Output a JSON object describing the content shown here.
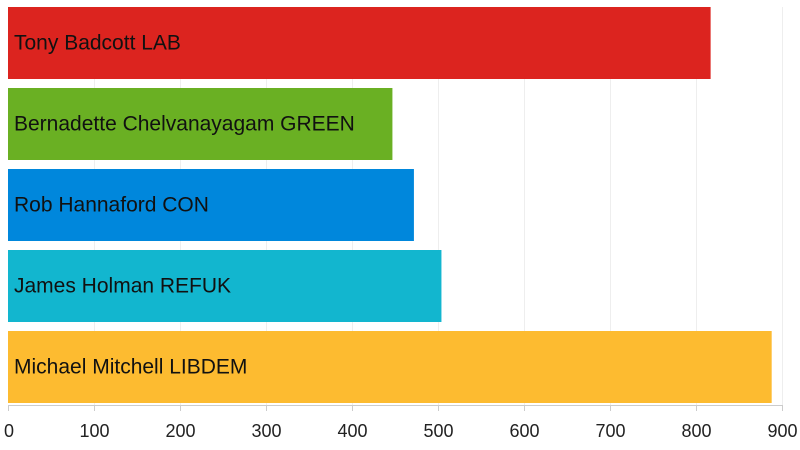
{
  "chart_data": {
    "type": "bar",
    "orientation": "horizontal",
    "title": "",
    "xlabel": "",
    "ylabel": "",
    "xlim": [
      0,
      900
    ],
    "grid": true,
    "ticks": [
      0,
      100,
      200,
      300,
      400,
      500,
      600,
      700,
      800,
      900
    ],
    "tick_labels": [
      "0",
      "100",
      "200",
      "300",
      "400",
      "500",
      "600",
      "700",
      "800",
      "900"
    ],
    "categories": [
      "Tony Badcott LAB",
      "Bernadette Chelvanayagam GREEN",
      "Rob Hannaford CON",
      "James Holman REFUK",
      "Michael Mitchell LIBDEM"
    ],
    "values": [
      817,
      447,
      472,
      504,
      888
    ],
    "colors": [
      "#dc241f",
      "#6ab023",
      "#0087dc",
      "#12b6cf",
      "#fdbb30"
    ]
  }
}
